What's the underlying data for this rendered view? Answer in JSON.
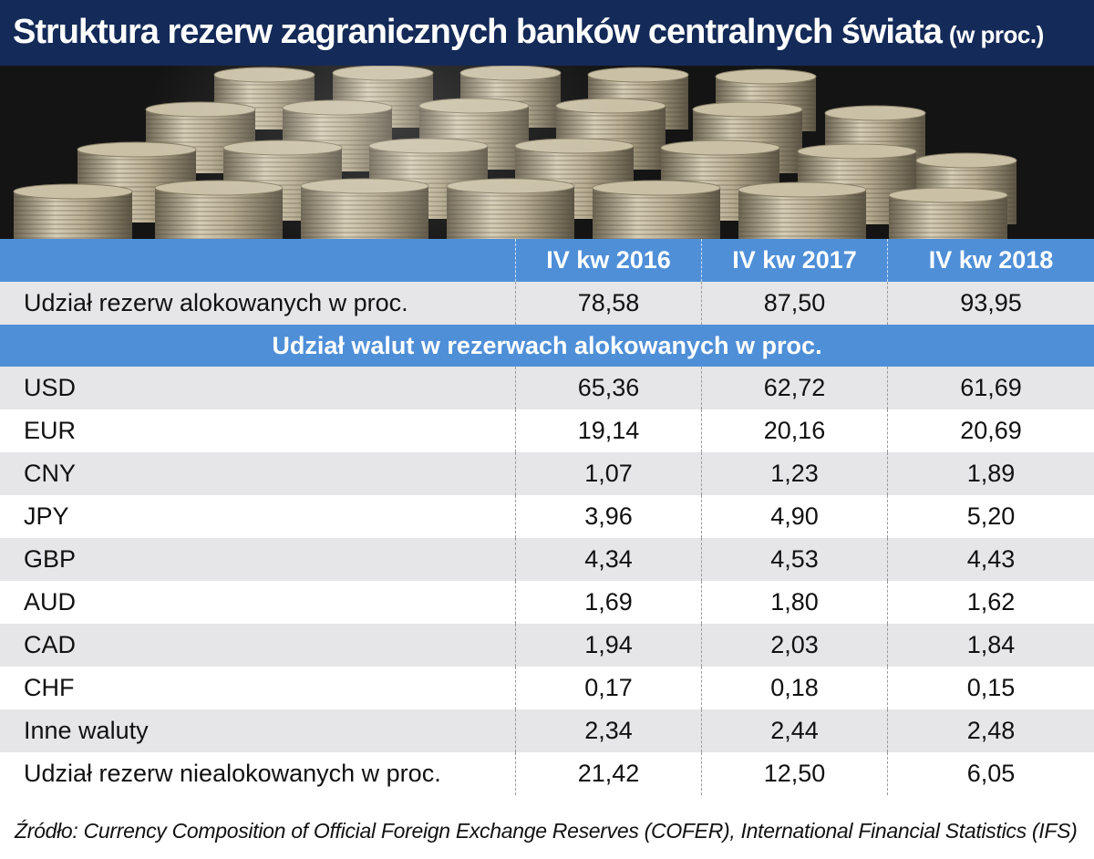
{
  "title": "Struktura rezerw zagranicznych banków centralnych świata",
  "title_unit": "(w proc.)",
  "chart_data": {
    "type": "table",
    "columns": [
      "IV kw 2016",
      "IV kw 2017",
      "IV kw 2018"
    ],
    "allocated_row": {
      "label": "Udział rezerw alokowanych w proc.",
      "values": [
        "78,58",
        "87,50",
        "93,95"
      ]
    },
    "section_label": "Udział walut w rezerwach alokowanych w proc.",
    "currency_rows": [
      {
        "label": "USD",
        "values": [
          "65,36",
          "62,72",
          "61,69"
        ]
      },
      {
        "label": "EUR",
        "values": [
          "19,14",
          "20,16",
          "20,69"
        ]
      },
      {
        "label": "CNY",
        "values": [
          "1,07",
          "1,23",
          "1,89"
        ]
      },
      {
        "label": "JPY",
        "values": [
          "3,96",
          "4,90",
          "5,20"
        ]
      },
      {
        "label": "GBP",
        "values": [
          "4,34",
          "4,53",
          "4,43"
        ]
      },
      {
        "label": "AUD",
        "values": [
          "1,69",
          "1,80",
          "1,62"
        ]
      },
      {
        "label": "CAD",
        "values": [
          "1,94",
          "2,03",
          "1,84"
        ]
      },
      {
        "label": "CHF",
        "values": [
          "0,17",
          "0,18",
          "0,15"
        ]
      },
      {
        "label": "Inne waluty",
        "values": [
          "2,34",
          "2,44",
          "2,48"
        ]
      }
    ],
    "unallocated_row": {
      "label": "Udział rezerw niealokowanych w proc.",
      "values": [
        "21,42",
        "12,50",
        "6,05"
      ]
    }
  },
  "source": "Źródło: Currency Composition of Official Foreign Exchange Reserves (COFER), International Financial Statistics (IFS)",
  "colors": {
    "title_bar": "#142a58",
    "header_blue": "#4f8fd8",
    "row_shade": "#e6e6e8"
  }
}
